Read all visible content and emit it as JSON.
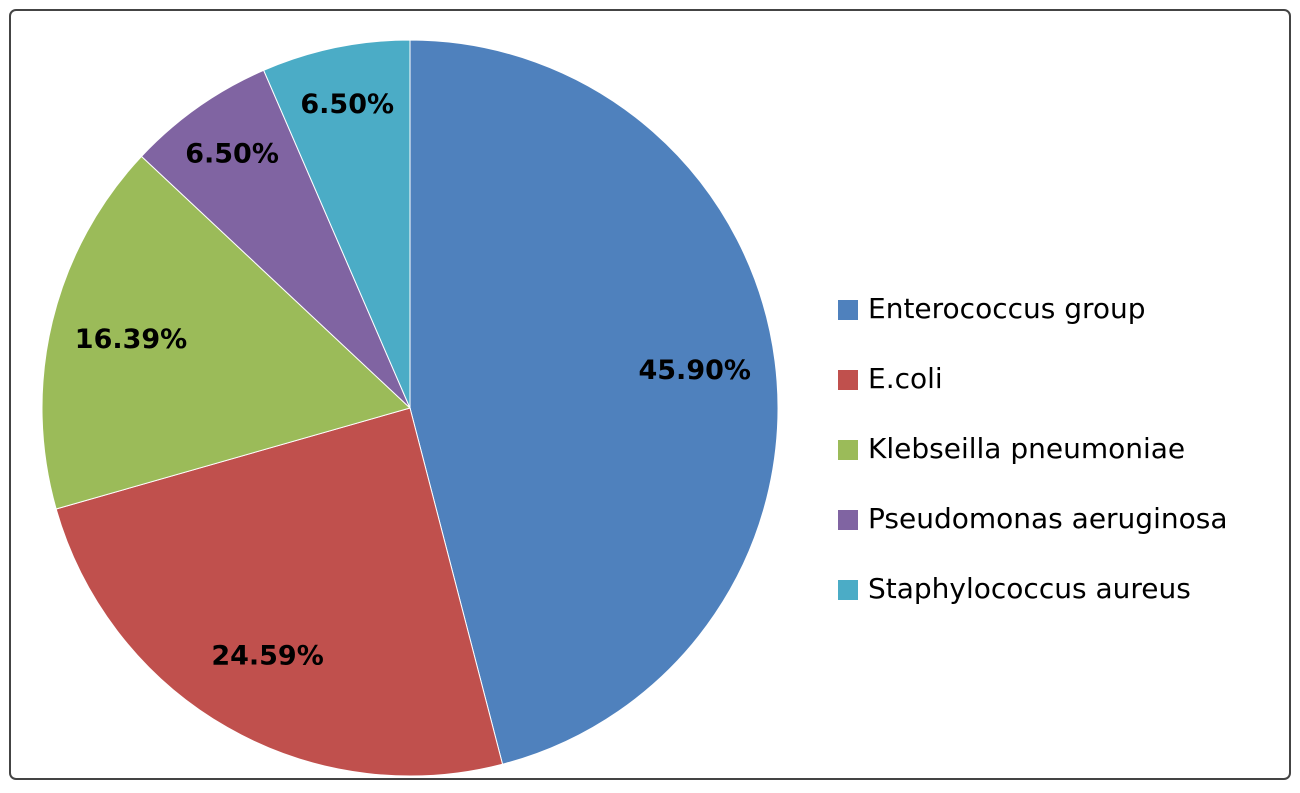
{
  "chart_data": {
    "type": "pie",
    "categories": [
      "Enterococcus group",
      "E.coli",
      "Klebseilla pneumoniae",
      "Pseudomonas aeruginosa",
      "Staphylococcus aureus"
    ],
    "values": [
      45.9,
      24.59,
      16.39,
      6.5,
      6.5
    ],
    "value_labels": [
      "45.90%",
      "24.59%",
      "16.39%",
      "6.50%",
      "6.50%"
    ],
    "colors": [
      "#4f81bd",
      "#c0504d",
      "#9bbb59",
      "#8064a2",
      "#4bacc6"
    ],
    "legend": "right"
  }
}
